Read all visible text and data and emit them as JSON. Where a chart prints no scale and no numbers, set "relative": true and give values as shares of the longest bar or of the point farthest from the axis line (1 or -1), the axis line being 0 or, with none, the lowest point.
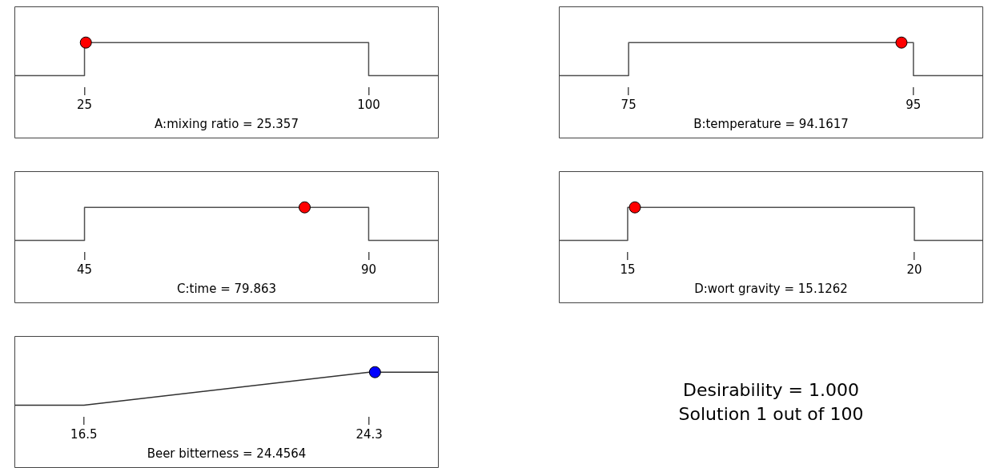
{
  "chart_data": [
    {
      "type": "line",
      "relative": true,
      "xlabel": "A:mixing ratio = 25.357",
      "xlim": [
        6.5,
        118.5
      ],
      "xticks": [
        25,
        100
      ],
      "tick_labels": "x",
      "grid": false,
      "legend": false,
      "series": [
        {
          "color": "#505050",
          "x": [
            6.5,
            25,
            25,
            100,
            100,
            118.5
          ],
          "values": [
            0,
            0,
            1,
            1,
            0,
            0
          ],
          "marker": "none"
        },
        {
          "type": "scatter",
          "color": "#ff0000",
          "x": [
            25.357
          ],
          "values": [
            1
          ],
          "marker": "circle"
        }
      ]
    },
    {
      "type": "line",
      "relative": true,
      "xlabel": "B:temperature = 94.1617",
      "xlim": [
        70.1,
        99.9
      ],
      "xticks": [
        75,
        95
      ],
      "tick_labels": "x",
      "grid": false,
      "legend": false,
      "series": [
        {
          "color": "#505050",
          "x": [
            70.1,
            75,
            75,
            95,
            95,
            99.9
          ],
          "values": [
            0,
            0,
            1,
            1,
            0,
            0
          ],
          "marker": "none"
        },
        {
          "type": "scatter",
          "color": "#ff0000",
          "x": [
            94.1617
          ],
          "values": [
            1
          ],
          "marker": "circle"
        }
      ]
    },
    {
      "type": "line",
      "relative": true,
      "xlabel": "C:time = 79.863",
      "xlim": [
        33.9,
        101.1
      ],
      "xticks": [
        45,
        90
      ],
      "tick_labels": "x",
      "grid": false,
      "legend": false,
      "series": [
        {
          "color": "#505050",
          "x": [
            33.9,
            45,
            45,
            90,
            90,
            101.1
          ],
          "values": [
            0,
            0,
            1,
            1,
            0,
            0
          ],
          "marker": "none"
        },
        {
          "type": "scatter",
          "color": "#ff0000",
          "x": [
            79.863
          ],
          "values": [
            1
          ],
          "marker": "circle"
        }
      ]
    },
    {
      "type": "line",
      "relative": true,
      "xlabel": "D:wort gravity = 15.1262",
      "xlim": [
        13.8,
        21.2
      ],
      "xticks": [
        15,
        20
      ],
      "tick_labels": "x",
      "grid": false,
      "legend": false,
      "series": [
        {
          "color": "#505050",
          "x": [
            13.8,
            15,
            15,
            20,
            20,
            21.2
          ],
          "values": [
            0,
            0,
            1,
            1,
            0,
            0
          ],
          "marker": "none"
        },
        {
          "type": "scatter",
          "color": "#ff0000",
          "x": [
            15.1262
          ],
          "values": [
            1
          ],
          "marker": "circle"
        }
      ]
    },
    {
      "type": "line",
      "relative": true,
      "xlabel": "Beer bitterness = 24.4564",
      "xlim": [
        14.6,
        26.2
      ],
      "xticks": [
        16.5,
        24.3
      ],
      "tick_labels": "x",
      "grid": false,
      "legend": false,
      "series": [
        {
          "color": "#303030",
          "x": [
            14.6,
            16.5,
            24.3,
            26.2
          ],
          "values": [
            0,
            0,
            1,
            1
          ],
          "marker": "none"
        },
        {
          "type": "scatter",
          "color": "#0000ff",
          "x": [
            24.4564
          ],
          "values": [
            1
          ],
          "marker": "circle"
        }
      ]
    },
    {
      "type": "other",
      "annotations": [
        "Desirability = 1.000",
        "Solution 1 out of 100"
      ]
    }
  ]
}
